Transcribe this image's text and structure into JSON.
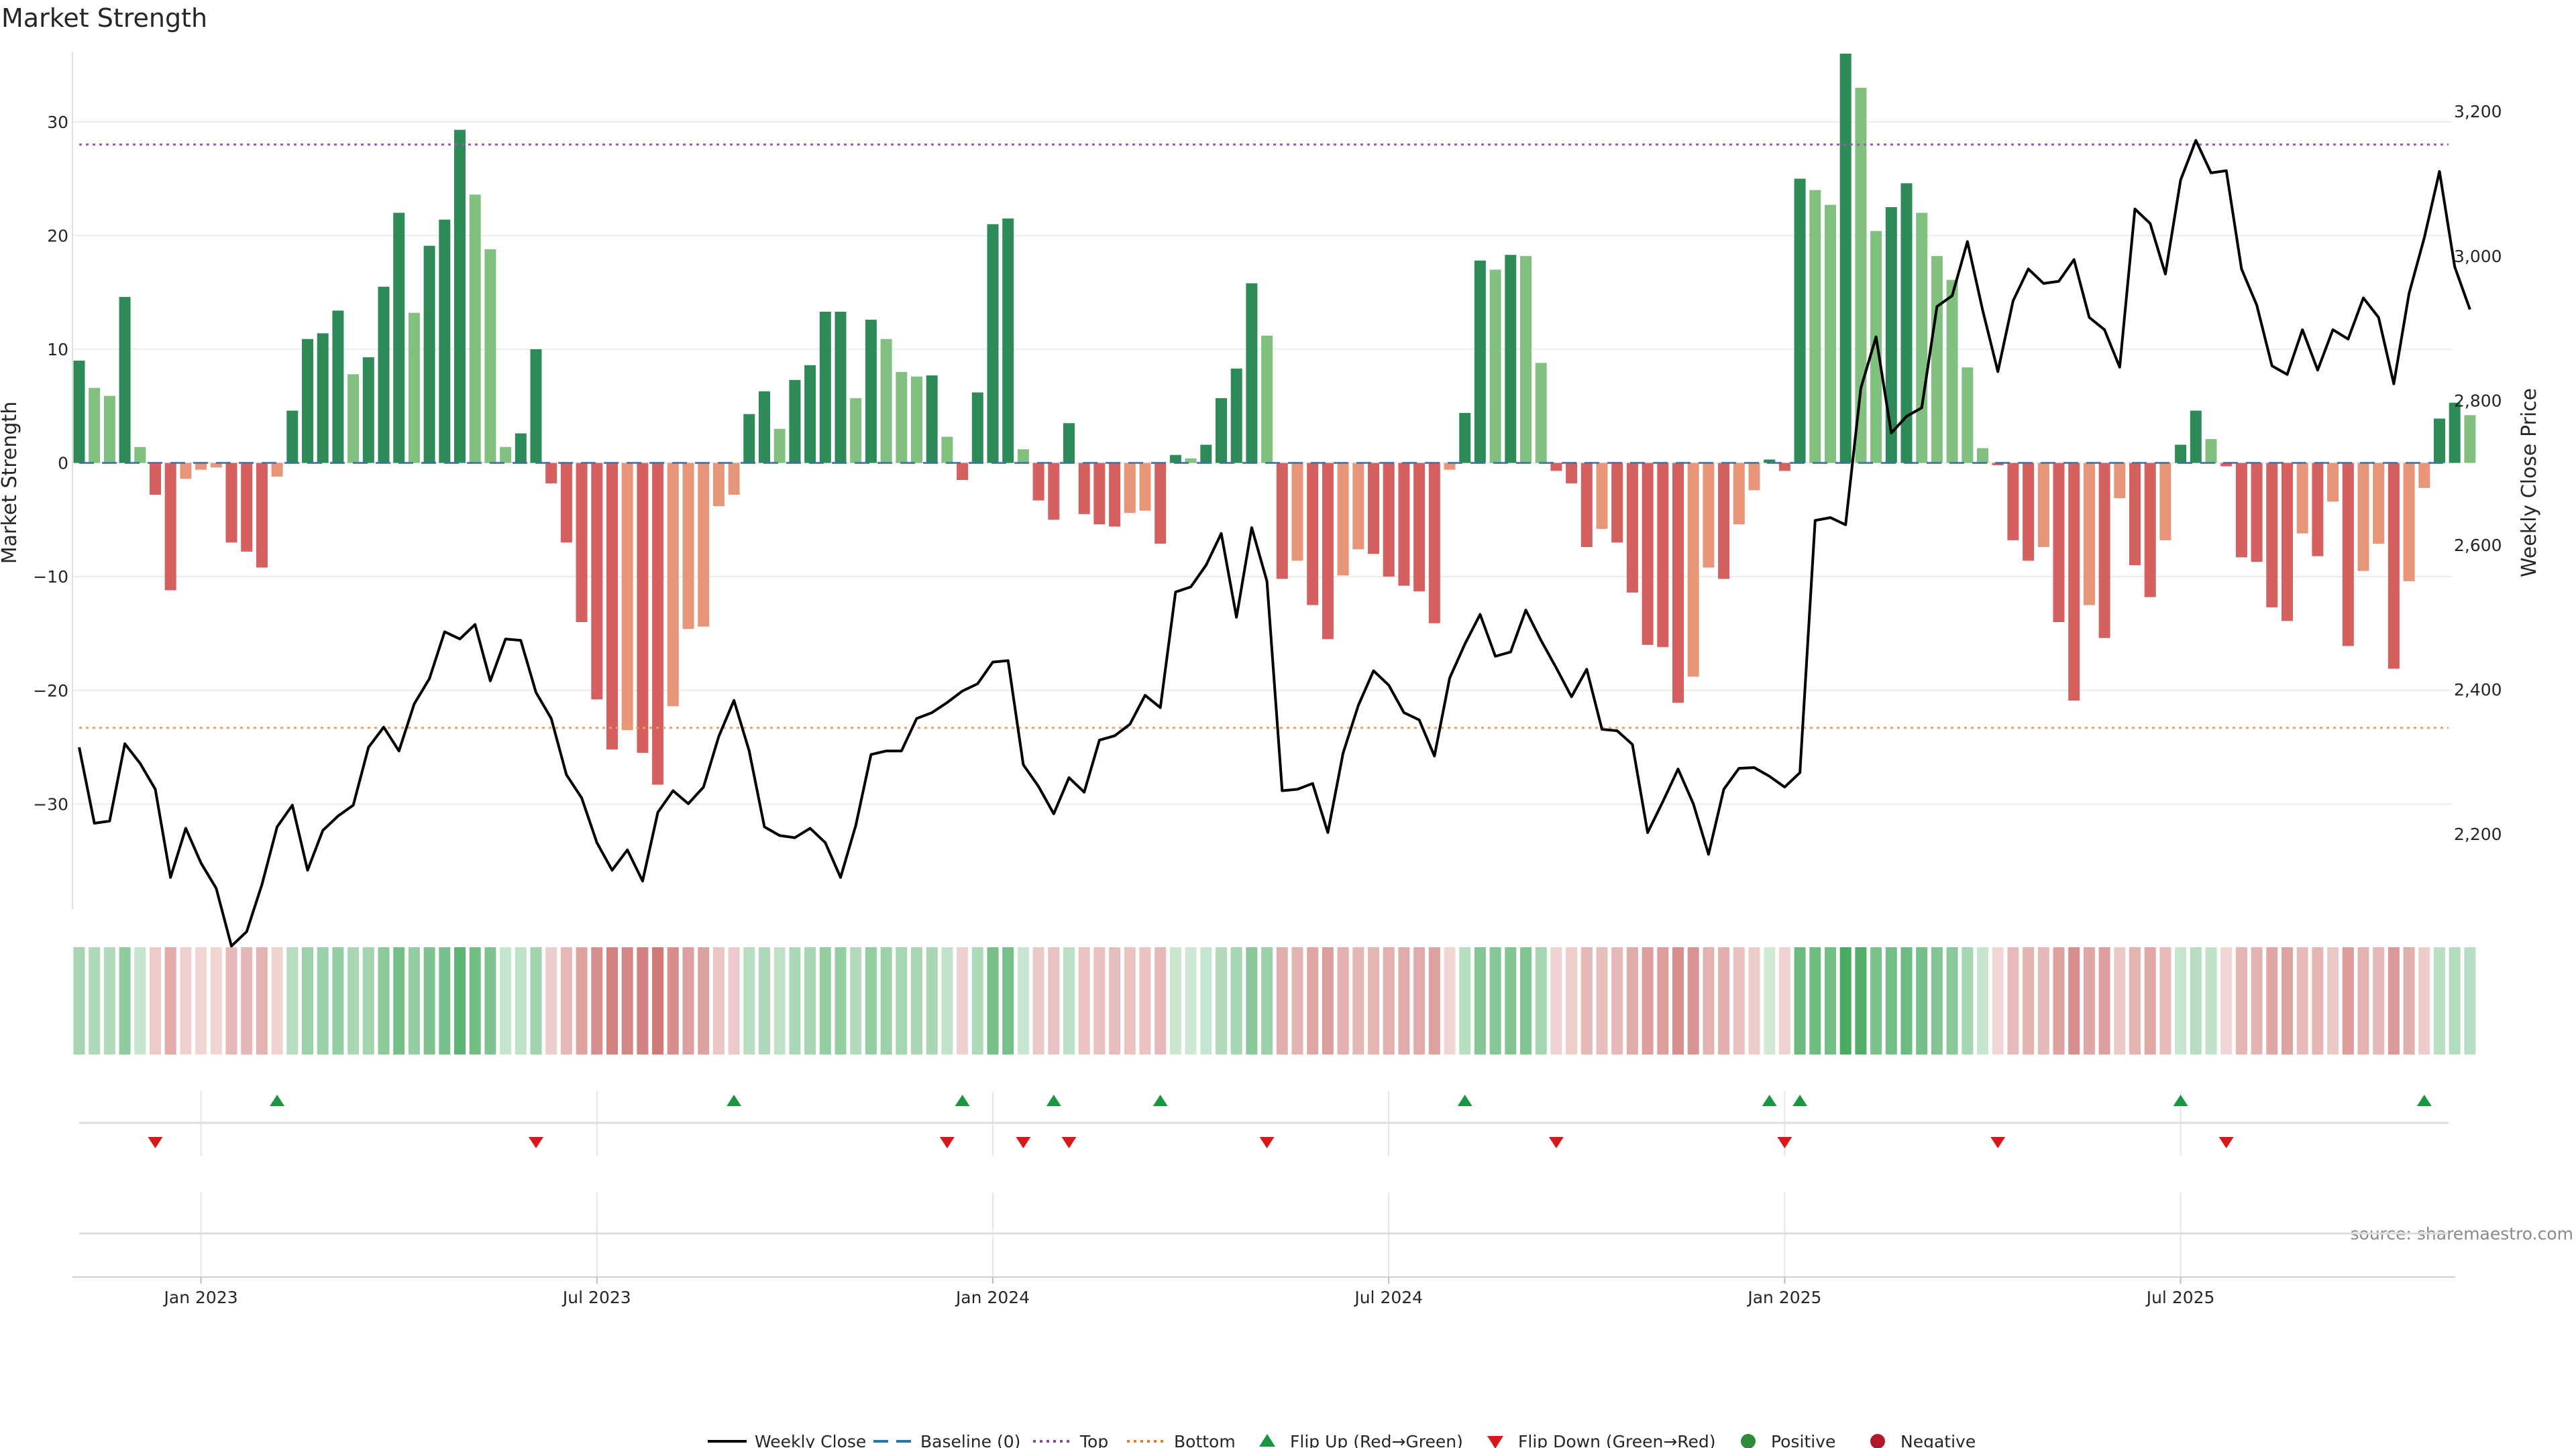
{
  "chart_data": {
    "type": "bar",
    "title": "Market Strength",
    "ylabel": "Market Strength",
    "y2label": "Weekly Close Price",
    "ylim": [
      -39,
      36
    ],
    "y2lim": [
      2100,
      3280
    ],
    "yticks": [
      30,
      20,
      10,
      0,
      -10,
      -20,
      -30
    ],
    "ytick_labels": [
      "30",
      "20",
      "10",
      "0",
      "−10",
      "−20",
      "−30"
    ],
    "y2ticks": [
      3200,
      3000,
      2800,
      2600,
      2400,
      2200
    ],
    "y2tick_labels": [
      "3,200",
      "3,000",
      "2,800",
      "2,600",
      "2,400",
      "2,200"
    ],
    "xtick_labels": [
      "Jan 2023",
      "Jul 2023",
      "Jan 2024",
      "Jul 2024",
      "Jan 2025",
      "Jul 2025"
    ],
    "xtick_weeks": [
      8,
      34,
      60,
      86,
      112,
      138
    ],
    "top_level": 28,
    "bottom_level": -23.3,
    "baseline": 0,
    "strength": [
      9,
      6.6,
      5.9,
      14.6,
      1.4,
      -2.8,
      -11.2,
      -1.4,
      -0.6,
      -0.4,
      -7,
      -7.8,
      -9.2,
      -1.2,
      4.6,
      10.9,
      11.4,
      13.4,
      7.8,
      9.3,
      15.5,
      22,
      13.2,
      19.1,
      21.4,
      29.3,
      23.6,
      18.8,
      1.4,
      2.6,
      10,
      -1.8,
      -7,
      -14,
      -20.8,
      -25.2,
      -23.5,
      -25.5,
      -28.3,
      -21.4,
      -14.6,
      -14.4,
      -3.8,
      -2.8,
      4.3,
      6.3,
      3,
      7.3,
      8.6,
      13.3,
      13.3,
      5.7,
      12.6,
      10.9,
      8,
      7.6,
      7.7,
      2.3,
      -1.5,
      6.2,
      21,
      21.5,
      1.2,
      -3.3,
      -5,
      3.5,
      -4.5,
      -5.4,
      -5.6,
      -4.4,
      -4.2,
      -7.1,
      0.7,
      0.4,
      1.6,
      5.7,
      8.3,
      15.8,
      11.2,
      -10.2,
      -8.6,
      -12.5,
      -15.5,
      -9.9,
      -7.6,
      -8,
      -10,
      -10.8,
      -11.3,
      -14.1,
      -0.6,
      4.4,
      17.8,
      17,
      18.3,
      18.2,
      8.8,
      -0.7,
      -1.8,
      -7.4,
      -5.8,
      -7,
      -11.4,
      -16,
      -16.2,
      -21.1,
      -18.8,
      -9.2,
      -10.2,
      -5.4,
      -2.4,
      0.3,
      -0.7,
      25,
      24,
      22.7,
      36,
      33,
      20.4,
      22.5,
      24.6,
      22,
      18.2,
      16.1,
      8.4,
      1.3,
      -0.2,
      -6.8,
      -8.6,
      -7.4,
      -14,
      -20.9,
      -12.5,
      -15.4,
      -3.1,
      -9,
      -11.8,
      -6.8,
      1.6,
      4.6,
      2.1,
      -0.3,
      -8.3,
      -8.7,
      -12.7,
      -13.9,
      -6.2,
      -8.2,
      -3.4,
      -16.1,
      -9.5,
      -7.1,
      -18.1,
      -10.4,
      -2.2,
      3.9,
      5.3,
      4.2
    ],
    "weekly_close": [
      2320,
      2215,
      2218,
      2325,
      2298,
      2262,
      2140,
      2208,
      2160,
      2125,
      2045,
      2065,
      2130,
      2210,
      2240,
      2150,
      2205,
      2225,
      2240,
      2320,
      2348,
      2315,
      2380,
      2415,
      2480,
      2470,
      2490,
      2412,
      2470,
      2468,
      2396,
      2360,
      2282,
      2250,
      2188,
      2150,
      2178,
      2135,
      2230,
      2260,
      2242,
      2265,
      2335,
      2385,
      2315,
      2210,
      2198,
      2195,
      2208,
      2188,
      2140,
      2212,
      2310,
      2315,
      2315,
      2360,
      2368,
      2382,
      2398,
      2408,
      2438,
      2440,
      2296,
      2266,
      2228,
      2278,
      2258,
      2330,
      2336,
      2352,
      2392,
      2375,
      2535,
      2542,
      2572,
      2616,
      2500,
      2624,
      2550,
      2260,
      2262,
      2270,
      2202,
      2312,
      2378,
      2426,
      2406,
      2368,
      2358,
      2308,
      2416,
      2463,
      2504,
      2446,
      2452,
      2510,
      2468,
      2430,
      2390,
      2428,
      2345,
      2343,
      2324,
      2202,
      2245,
      2290,
      2242,
      2172,
      2262,
      2291,
      2292,
      2280,
      2265,
      2285,
      2634,
      2638,
      2628,
      2817,
      2888,
      2755,
      2778,
      2790,
      2930,
      2945,
      3020,
      2925,
      2840,
      2938,
      2982,
      2962,
      2965,
      2995,
      2915,
      2898,
      2846,
      3065,
      3045,
      2975,
      3105,
      3160,
      3115,
      3118,
      2982,
      2932,
      2848,
      2836,
      2898,
      2842,
      2898,
      2885,
      2942,
      2915,
      2823,
      2948,
      3025,
      3117,
      2985,
      2926
    ],
    "flip_up_weeks": [
      13,
      43,
      58,
      64,
      71,
      91,
      111,
      113,
      138,
      154
    ],
    "flip_down_weeks": [
      5,
      30,
      57,
      62,
      65,
      78,
      97,
      112,
      126,
      141
    ],
    "legend": [
      {
        "label": "Weekly Close",
        "kind": "line",
        "color": "#000000"
      },
      {
        "label": "Baseline (0)",
        "kind": "dash",
        "color": "#1f77b4"
      },
      {
        "label": "Top",
        "kind": "dot",
        "color": "#8e44ad"
      },
      {
        "label": "Bottom",
        "kind": "dot",
        "color": "#e67e22"
      },
      {
        "label": "Flip Up (Red→Green)",
        "kind": "tri-up",
        "color": "#1a9641"
      },
      {
        "label": "Flip Down (Green→Red)",
        "kind": "tri-down",
        "color": "#d7191c"
      },
      {
        "label": "Positive",
        "kind": "circle",
        "color": "#2e8b3a"
      },
      {
        "label": "Negative",
        "kind": "circle",
        "color": "#b2182b"
      }
    ],
    "source": "source: sharemaestro.com"
  },
  "colors": {
    "pos_strong": "#2e8b57",
    "pos_weak": "#82c07f",
    "neg_strong": "#d46060",
    "neg_weak": "#e8967a",
    "top_line": "#9b59b6",
    "bottom_line": "#e8a060",
    "baseline": "#3a6ea5"
  }
}
